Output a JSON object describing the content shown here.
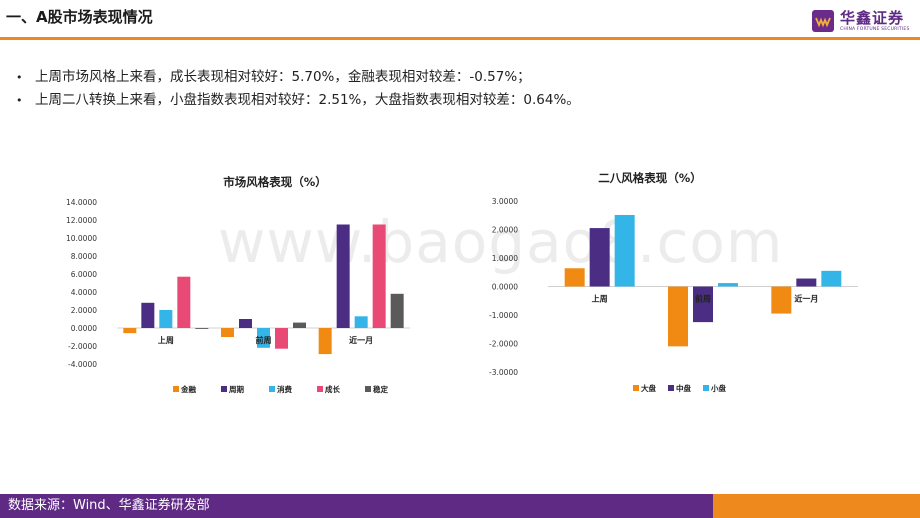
{
  "page": {
    "title": "一、A股市场表现情况",
    "logo": {
      "cn": "华鑫证券",
      "en": "CHINA FORTUNE SECURITIES"
    },
    "watermark": "www.baogao8.com",
    "bullets": [
      "上周市场风格上来看，成长表现相对较好：5.70%，金融表现相对较差：-0.57%；",
      "上周二八转换上来看，小盘指数表现相对较好：2.51%，大盘指数表现相对较差：0.64%。"
    ],
    "bullet_symbol": "•",
    "footer": "数据来源：Wind、华鑫证券研发部",
    "colors": {
      "accent_orange": "#ee8a1d",
      "brand_purple": "#5e2a84"
    }
  },
  "chart_data": [
    {
      "type": "bar",
      "title": "市场风格表现（%）",
      "categories": [
        "上周",
        "前周",
        "近一月"
      ],
      "series": [
        {
          "name": "金融",
          "color": "#f08a13",
          "values": [
            -0.57,
            -1.0,
            -2.9
          ]
        },
        {
          "name": "周期",
          "color": "#4b2e83",
          "values": [
            2.8,
            1.0,
            11.5
          ]
        },
        {
          "name": "消费",
          "color": "#33b5e8",
          "values": [
            2.0,
            -2.2,
            1.3
          ]
        },
        {
          "name": "成长",
          "color": "#e94a75",
          "values": [
            5.7,
            -2.3,
            11.5
          ]
        },
        {
          "name": "稳定",
          "color": "#5a5a5a",
          "values": [
            -0.1,
            0.6,
            3.8
          ]
        }
      ],
      "ylim": [
        -4,
        14
      ],
      "yticks": [
        "14.0000",
        "12.0000",
        "10.0000",
        "8.0000",
        "6.0000",
        "4.0000",
        "2.0000",
        "0.0000",
        "-2.0000",
        "-4.0000"
      ],
      "ytick_values": [
        14,
        12,
        10,
        8,
        6,
        4,
        2,
        0,
        -2,
        -4
      ],
      "legend": "bottom",
      "grid": false
    },
    {
      "type": "bar",
      "title": "二八风格表现（%）",
      "categories": [
        "上周",
        "前周",
        "近一月"
      ],
      "series": [
        {
          "name": "大盘",
          "color": "#f08a13",
          "values": [
            0.64,
            -2.1,
            -0.95
          ]
        },
        {
          "name": "中盘",
          "color": "#4b2e83",
          "values": [
            2.05,
            -1.25,
            0.28
          ]
        },
        {
          "name": "小盘",
          "color": "#33b5e8",
          "values": [
            2.51,
            0.12,
            0.55
          ]
        }
      ],
      "ylim": [
        -3,
        3
      ],
      "yticks": [
        "3.0000",
        "2.0000",
        "1.0000",
        "0.0000",
        "-1.0000",
        "-2.0000",
        "-3.0000"
      ],
      "ytick_values": [
        3,
        2,
        1,
        0,
        -1,
        -2,
        -3
      ],
      "legend": "bottom",
      "grid": false
    }
  ]
}
